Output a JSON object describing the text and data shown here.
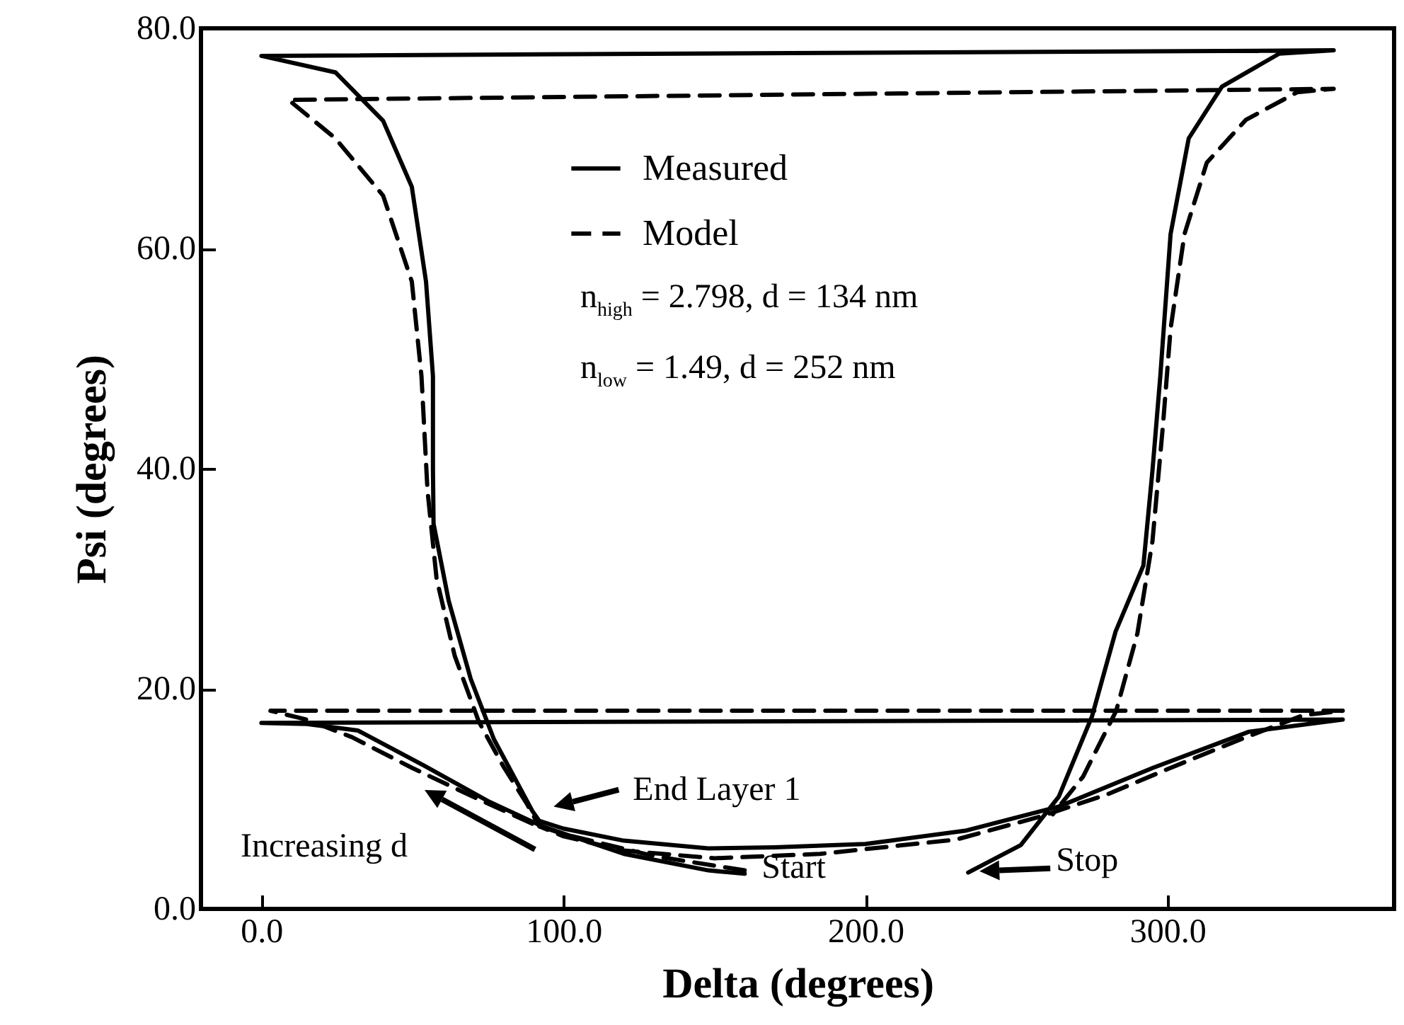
{
  "chart_data": {
    "type": "line",
    "xlabel": "Delta (degrees)",
    "ylabel": "Psi (degrees)",
    "xlim": [
      -20,
      375
    ],
    "ylim": [
      0,
      80
    ],
    "xticks": [
      {
        "value": 0,
        "label": "0.0"
      },
      {
        "value": 100,
        "label": "100.0"
      },
      {
        "value": 200,
        "label": "200.0"
      },
      {
        "value": 300,
        "label": "300.0"
      }
    ],
    "yticks": [
      {
        "value": 0,
        "label": "0.0"
      },
      {
        "value": 20,
        "label": "20.0"
      },
      {
        "value": 40,
        "label": "40.0"
      },
      {
        "value": 60,
        "label": "60.0"
      },
      {
        "value": 80,
        "label": "80.0"
      }
    ],
    "legend": "top",
    "series": [
      {
        "name": "Measured",
        "color": "#000000",
        "line_style": "solid",
        "x": [
          160,
          148,
          120,
          93,
          75,
          54,
          32,
          15,
          0,
          358,
          327,
          295,
          264,
          233,
          200,
          170,
          148,
          120,
          100,
          92,
          89.7,
          77,
          69.3,
          62,
          57,
          56.8,
          56.8,
          54.5,
          49.8,
          40.3,
          24.5,
          0,
          355,
          337,
          318,
          307,
          301,
          297.6,
          295,
          292,
          282.8,
          275,
          264,
          251.4,
          234
        ],
        "values": [
          3.2,
          3.5,
          5,
          7.5,
          9.8,
          13,
          16.2,
          16.8,
          16.9,
          17.2,
          16.1,
          12.8,
          9.3,
          7.1,
          5.9,
          5.6,
          5.5,
          6.2,
          7.3,
          8,
          8.9,
          15.4,
          20.9,
          28,
          35,
          40,
          48.4,
          57,
          65.6,
          71.6,
          76,
          77.5,
          78,
          77.7,
          74.7,
          70,
          61.3,
          48.4,
          39.8,
          31.2,
          25.2,
          17.5,
          10.2,
          5.8,
          3.3
        ]
      },
      {
        "name": "Model",
        "color": "#000000",
        "line_style": "dashed",
        "x": [
          160,
          130,
          100,
          90,
          70,
          50,
          30,
          15,
          3,
          358,
          345,
          325,
          300,
          280,
          258,
          230,
          185,
          150,
          120,
          100,
          92,
          88,
          80,
          72,
          64,
          58,
          55,
          53,
          49.8,
          40.3,
          24.5,
          9,
          355,
          343,
          326,
          313,
          305.6,
          301,
          298.5,
          295,
          290,
          283,
          272,
          262
        ],
        "values": [
          3.5,
          4.8,
          6.8,
          7.7,
          10.2,
          12.8,
          15.6,
          17.2,
          18,
          18,
          17.6,
          15.5,
          12.7,
          10.4,
          8.4,
          6.3,
          5,
          4.6,
          5.3,
          6.6,
          7.5,
          9.5,
          13,
          17,
          23,
          30,
          38,
          48.4,
          57,
          64.8,
          70,
          73.5,
          74.5,
          74.2,
          71.7,
          67.8,
          61.3,
          52.7,
          44,
          33.4,
          25,
          18,
          12,
          8.6
        ]
      }
    ],
    "annotations": [
      "n$_{high}$ = 2.798, d = 134 nm",
      "n$_{low}$ = 1.49,  d = 252 nm",
      {
        "text": "End Layer 1",
        "x": 93,
        "y": 8
      },
      "Increasing d",
      {
        "text": "Start",
        "x": 160,
        "y": 3.2
      },
      {
        "text": "Stop",
        "x": 234,
        "y": 3.3
      }
    ]
  }
}
